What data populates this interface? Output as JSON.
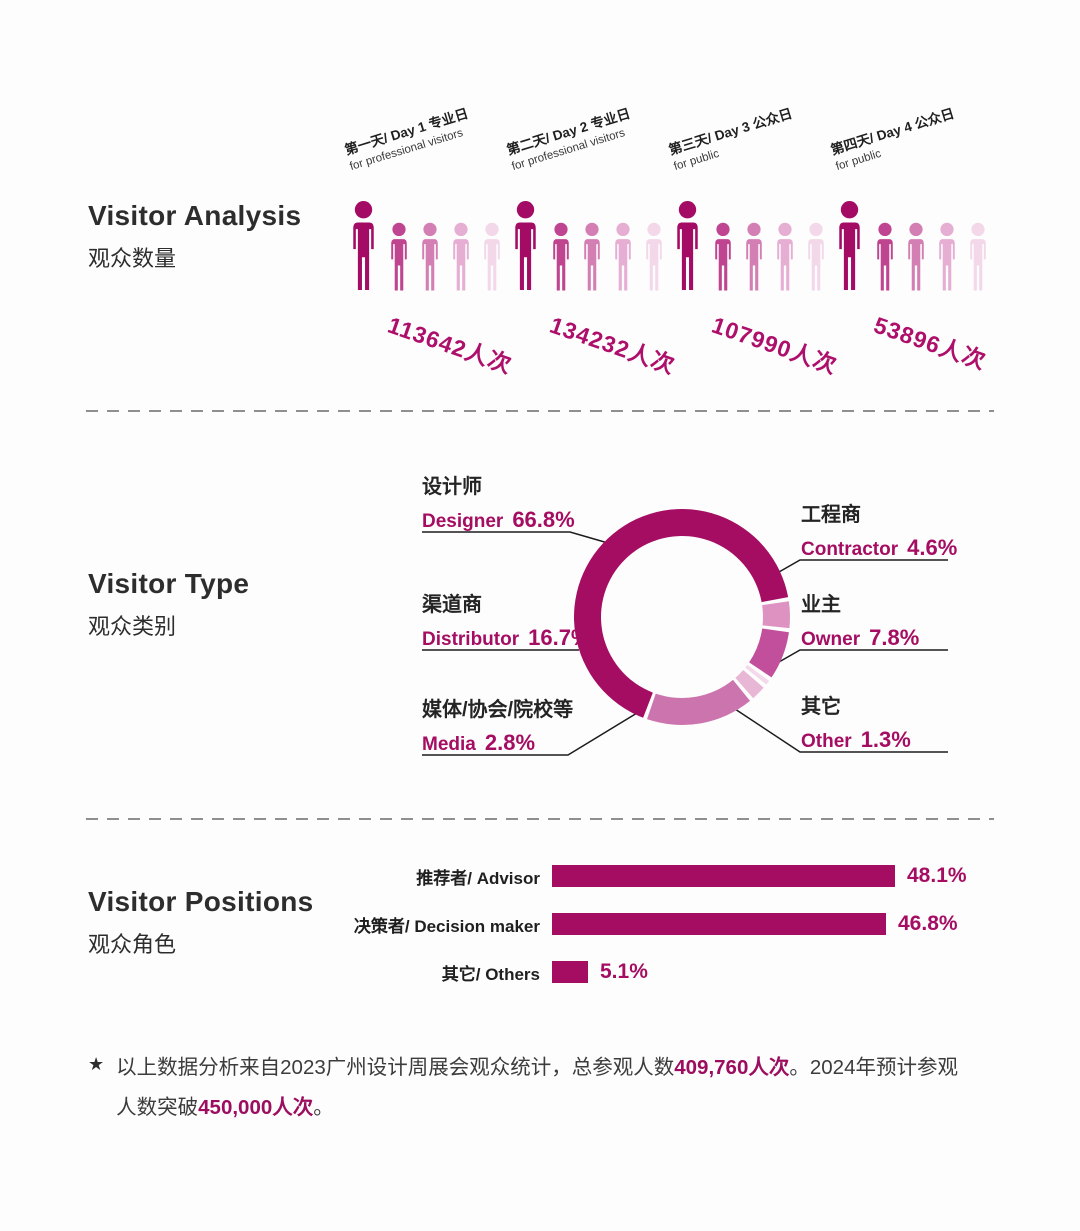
{
  "accent": "#a50d63",
  "visitor_analysis": {
    "title": "Visitor Analysis",
    "subtitle": "观众数量",
    "unit": "人次",
    "icon_shades": [
      "#a30b64",
      "#bf4590",
      "#d47fb4",
      "#e6aed2",
      "#f3d8ea"
    ],
    "groups": [
      {
        "day_label": "第一天/ Day 1 专业日",
        "audience": "for professional visitors",
        "count_label": "113642人次",
        "count": 113642
      },
      {
        "day_label": "第二天/ Day 2 专业日",
        "audience": "for professional visitors",
        "count_label": "134232人次",
        "count": 134232
      },
      {
        "day_label": "第三天/ Day 3 公众日",
        "audience": "for public",
        "count_label": "107990人次",
        "count": 107990
      },
      {
        "day_label": "第四天/ Day 4 公众日",
        "audience": "for public",
        "count_label": "53896人次",
        "count": 53896
      }
    ]
  },
  "visitor_type": {
    "title": "Visitor Type",
    "subtitle": "观众类别",
    "segments": [
      {
        "id": "designer",
        "zh": "设计师",
        "en": "Designer",
        "pct": "66.8%",
        "value": 66.8,
        "color": "#a50d63"
      },
      {
        "id": "contractor",
        "zh": "工程商",
        "en": "Contractor",
        "pct": "4.6%",
        "value": 4.6,
        "color": "#dd92c2"
      },
      {
        "id": "owner",
        "zh": "业主",
        "en": "Owner",
        "pct": "7.8%",
        "value": 7.8,
        "color": "#c14f9b"
      },
      {
        "id": "other",
        "zh": "其它",
        "en": "Other",
        "pct": "1.3%",
        "value": 1.3,
        "color": "#f4d9ea"
      },
      {
        "id": "media",
        "zh": "媒体/协会/院校等",
        "en": "Media",
        "pct": "2.8%",
        "value": 2.8,
        "color": "#e9b7d6"
      },
      {
        "id": "distributor",
        "zh": "渠道商",
        "en": "Distributor",
        "pct": "16.7%",
        "value": 16.7,
        "color": "#cc74ae"
      }
    ]
  },
  "visitor_positions": {
    "title": "Visitor Positions",
    "subtitle": "观众角色",
    "bar_color": "#a50d63",
    "bars": [
      {
        "label": "推荐者/ Advisor",
        "pct": "48.1%",
        "value": 48.1
      },
      {
        "label": "决策者/ Decision maker",
        "pct": "46.8%",
        "value": 46.8
      },
      {
        "label": "其它/ Others",
        "pct": "5.1%",
        "value": 5.1
      }
    ]
  },
  "footer": {
    "star": "★",
    "segments": [
      {
        "text": "以上数据分析来自2023广州设计周展会观众统计，总参观人数",
        "strong": false
      },
      {
        "text": "409,760人次",
        "strong": true
      },
      {
        "text": "。2024年预计参观人数突破",
        "strong": false
      },
      {
        "text": "450,000人次",
        "strong": true
      },
      {
        "text": "。",
        "strong": false
      }
    ]
  },
  "chart_data": [
    {
      "type": "bar",
      "variant": "pictogram",
      "title": "Visitor Analysis 观众数量",
      "categories": [
        "第一天/ Day 1 专业日 for professional visitors",
        "第二天/ Day 2 专业日 for professional visitors",
        "第三天/ Day 3 公众日 for public",
        "第四天/ Day 4 公众日 for public"
      ],
      "values": [
        113642,
        134232,
        107990,
        53896
      ],
      "unit": "人次",
      "legend_position": "none",
      "grid": false
    },
    {
      "type": "pie",
      "variant": "donut",
      "title": "Visitor Type 观众类别",
      "labels": [
        "设计师 Designer",
        "工程商 Contractor",
        "业主 Owner",
        "其它 Other",
        "媒体/协会/院校等 Media",
        "渠道商 Distributor"
      ],
      "values": [
        66.8,
        4.6,
        7.8,
        1.3,
        2.8,
        16.7
      ],
      "unit": "%",
      "legend_position": "callout-labels",
      "grid": false
    },
    {
      "type": "bar",
      "variant": "horizontal",
      "title": "Visitor Positions 观众角色",
      "categories": [
        "推荐者/ Advisor",
        "决策者/ Decision maker",
        "其它/ Others"
      ],
      "values": [
        48.1,
        46.8,
        5.1
      ],
      "unit": "%",
      "xlim": [
        0,
        50
      ],
      "grid": false
    }
  ]
}
